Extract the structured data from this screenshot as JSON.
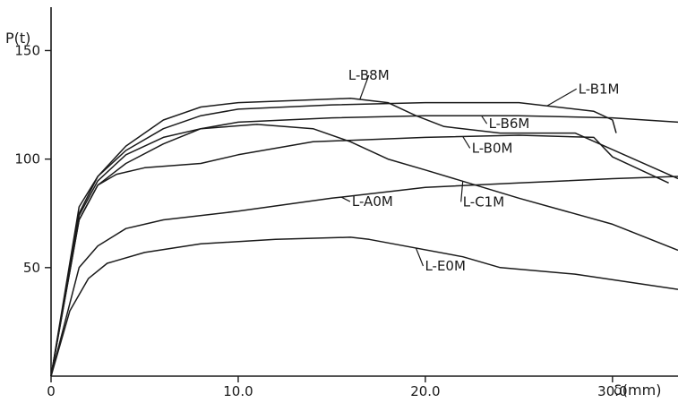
{
  "chart_data": {
    "type": "line",
    "xlabel": "δ(mm)",
    "ylabel": "P(t)",
    "xlim": [
      0,
      33.5
    ],
    "ylim": [
      0,
      170
    ],
    "x_ticks": [
      0,
      10,
      20,
      30
    ],
    "x_tick_labels": [
      "0",
      "10.0",
      "20.0",
      "30.0"
    ],
    "y_ticks": [
      50,
      100,
      150
    ],
    "y_tick_labels": [
      "50",
      "100",
      "150"
    ],
    "grid": false,
    "colors": {
      "line": "#1a1a1a",
      "background": "#ffffff"
    },
    "series": [
      {
        "name": "L-B8M",
        "x": [
          0,
          1.5,
          2.5,
          4,
          6,
          8,
          10,
          13,
          16,
          18,
          19.5,
          21,
          24,
          28,
          33.5
        ],
        "y": [
          0,
          75,
          92,
          106,
          118,
          124,
          126,
          127,
          128,
          126,
          120,
          115,
          112,
          112,
          91
        ]
      },
      {
        "name": "L-B1M",
        "x": [
          0,
          1.5,
          2.5,
          4,
          6,
          8,
          10,
          15,
          20,
          25,
          29,
          30,
          30.2
        ],
        "y": [
          0,
          78,
          92,
          104,
          114,
          120,
          123,
          125,
          126,
          126,
          122,
          118,
          112
        ]
      },
      {
        "name": "L-B6M",
        "x": [
          0,
          1.5,
          2.5,
          4,
          6,
          8,
          10,
          15,
          20,
          25,
          30,
          33.5
        ],
        "y": [
          0,
          74,
          90,
          102,
          110,
          114,
          117,
          119,
          120,
          120,
          119,
          117
        ]
      },
      {
        "name": "L-B0M",
        "x": [
          0,
          1.5,
          2.5,
          3.5,
          5,
          8,
          10,
          14,
          20,
          25,
          29,
          30,
          33
        ],
        "y": [
          0,
          72,
          88,
          93,
          96,
          98,
          102,
          108,
          110,
          111,
          110,
          101,
          89
        ]
      },
      {
        "name": "L-C1M",
        "x": [
          0,
          1.5,
          2.5,
          4,
          6,
          8,
          11,
          14,
          16,
          18,
          20,
          25,
          30,
          33.5
        ],
        "y": [
          0,
          72,
          88,
          98,
          107,
          114,
          116,
          114,
          108,
          100,
          95,
          82,
          70,
          58
        ]
      },
      {
        "name": "L-A0M",
        "x": [
          0,
          1.5,
          2.5,
          4,
          6,
          10,
          15,
          20,
          25,
          30,
          33.5
        ],
        "y": [
          0,
          50,
          60,
          68,
          72,
          76,
          82,
          87,
          89,
          91,
          92
        ]
      },
      {
        "name": "L-E0M",
        "x": [
          0,
          1,
          2,
          3,
          5,
          8,
          12,
          16,
          17,
          22,
          24,
          28,
          33.5
        ],
        "y": [
          0,
          30,
          45,
          52,
          57,
          61,
          63,
          64,
          63,
          55,
          50,
          47,
          40
        ]
      }
    ],
    "annotations": [
      {
        "text": "L-B8M",
        "series": "L-B8M",
        "at_x": 16.5
      },
      {
        "text": "L-B1M",
        "series": "L-B1M",
        "at_x": 26.5
      },
      {
        "text": "L-B6M",
        "series": "L-B6M",
        "at_x": 23.0
      },
      {
        "text": "L-B0M",
        "series": "L-B0M",
        "at_x": 22.0
      },
      {
        "text": "L-C1M",
        "series": "L-C1M",
        "at_x": 22.0
      },
      {
        "text": "L-A0M",
        "series": "L-A0M",
        "at_x": 15.5
      },
      {
        "text": "L-E0M",
        "series": "L-E0M",
        "at_x": 19.5
      }
    ]
  }
}
